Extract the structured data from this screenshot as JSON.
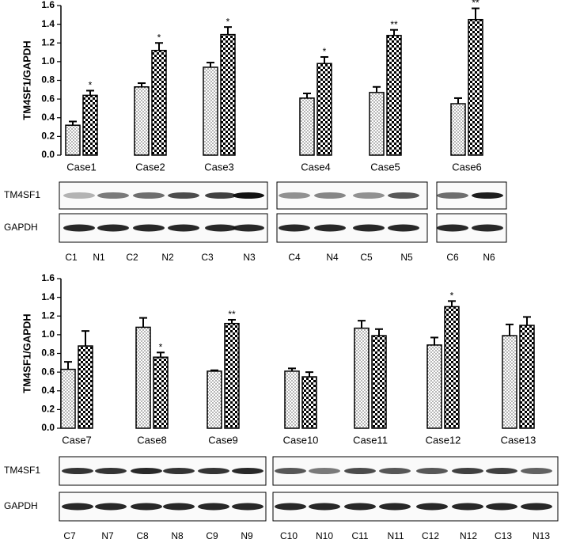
{
  "chart_data": [
    {
      "type": "bar",
      "y_label": "TM4SF1/GAPDH",
      "categories": [
        "Case1",
        "Case2",
        "Case3",
        "Case4",
        "Case5",
        "Case6"
      ],
      "series": [
        {
          "color": "#000000",
          "values": [
            0.32,
            0.73,
            0.94,
            0.61,
            0.67,
            0.55
          ],
          "errors": [
            0.04,
            0.04,
            0.05,
            0.05,
            0.06,
            0.06
          ]
        },
        {
          "color": "#000000",
          "values": [
            0.64,
            1.12,
            1.29,
            0.98,
            1.28,
            1.45
          ],
          "errors": [
            0.05,
            0.08,
            0.08,
            0.07,
            0.06,
            0.12
          ],
          "significance": [
            "*",
            "*",
            "*",
            "*",
            "**",
            "**"
          ]
        }
      ],
      "ylim": [
        0,
        1.6
      ],
      "yticks": [
        {
          "value": 0,
          "label": "0.0"
        },
        0.2,
        0.4,
        0.6,
        0.8,
        {
          "value": 1,
          "label": "1.0"
        },
        1.2,
        1.4,
        1.6
      ]
    },
    {
      "type": "bar",
      "y_label": "TM4SF1/GAPDH",
      "categories": [
        "Case7",
        "Case8",
        "Case9",
        "Case10",
        "Case11",
        "Case12",
        "Case13"
      ],
      "series": [
        {
          "color": "#000000",
          "values": [
            0.63,
            1.08,
            0.61,
            0.61,
            1.07,
            0.89,
            0.99
          ],
          "errors": [
            0.08,
            0.1,
            0.01,
            0.03,
            0.08,
            0.08,
            0.12
          ]
        },
        {
          "color": "#000000",
          "values": [
            0.88,
            0.76,
            1.12,
            0.55,
            0.99,
            1.3,
            1.1
          ],
          "errors": [
            0.16,
            0.05,
            0.04,
            0.05,
            0.07,
            0.06,
            0.09
          ],
          "significance": [
            null,
            "*",
            "**",
            null,
            null,
            "*",
            null
          ]
        }
      ],
      "ylim": [
        0,
        1.6
      ],
      "yticks": [
        {
          "value": 0,
          "label": "0.0"
        },
        0.2,
        0.4,
        0.6,
        0.8,
        {
          "value": 1,
          "label": "1.0"
        },
        1.2,
        1.4,
        1.6
      ]
    }
  ],
  "blots": [
    {
      "rows": [
        "TM4SF1",
        "GAPDH"
      ],
      "lanes": [
        "C1",
        "N1",
        "C2",
        "N2",
        "C3",
        "N3",
        "C4",
        "N4",
        "C5",
        "N5",
        "C6",
        "N6"
      ]
    },
    {
      "rows": [
        "TM4SF1",
        "GAPDH"
      ],
      "lanes": [
        "C7",
        "N7",
        "C8",
        "N8",
        "C9",
        "N9",
        "C10",
        "N10",
        "C11",
        "N11",
        "C12",
        "N12",
        "C13",
        "N13"
      ]
    }
  ]
}
